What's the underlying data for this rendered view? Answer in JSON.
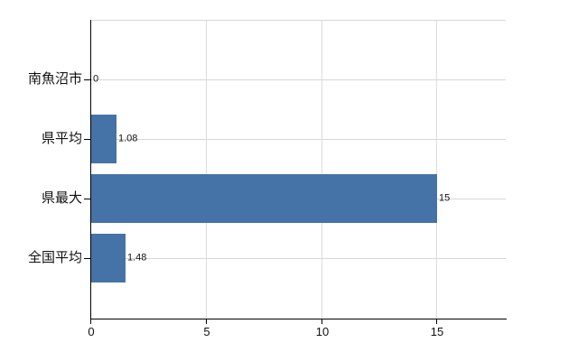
{
  "chart_data": {
    "type": "bar",
    "orientation": "horizontal",
    "title": "",
    "xlabel": "",
    "ylabel": "",
    "categories": [
      "南魚沼市",
      "県平均",
      "県最大",
      "全国平均"
    ],
    "values": [
      0,
      1.08,
      15,
      1.48
    ],
    "value_labels": [
      "0",
      "1.08",
      "15",
      "1.48"
    ],
    "x_ticks": [
      "0",
      "5",
      "10",
      "15"
    ],
    "x_tick_values": [
      0,
      5,
      10,
      15
    ],
    "xlim": [
      0,
      18
    ],
    "grid": true,
    "legend": false,
    "colors": {
      "bar": "#4572a7",
      "grid": "#d8d8d8",
      "axis": "#000000",
      "text": "#111111",
      "background": "#ffffff"
    }
  }
}
